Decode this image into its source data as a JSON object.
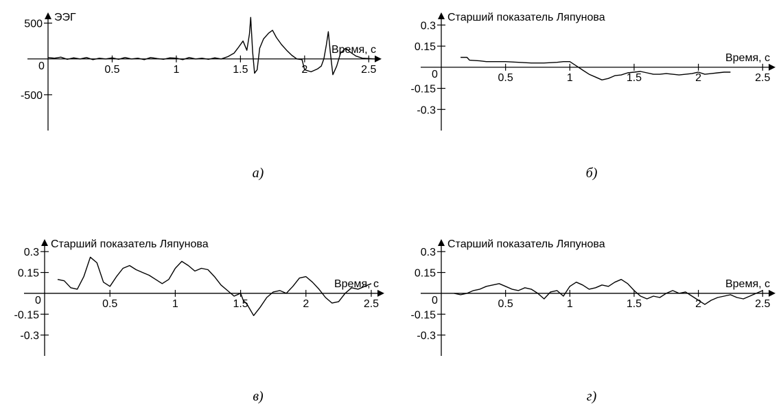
{
  "chart_data": [
    {
      "type": "line",
      "panel": "a",
      "caption": "а)",
      "ylabel": "ЭЭГ",
      "xlabel": "Время, с",
      "origin_label": "0",
      "xlim": [
        0,
        2.6
      ],
      "ylim": [
        -1000,
        650
      ],
      "xticks": [
        0.5,
        1,
        1.5,
        2,
        2.5
      ],
      "xtick_labels": [
        "0.5",
        "1",
        "1.5",
        "2",
        "2.5"
      ],
      "yticks": [
        500,
        -500
      ],
      "ytick_labels": [
        "500",
        "-500"
      ],
      "series": [
        {
          "x": [
            0.0,
            0.05,
            0.1,
            0.15,
            0.2,
            0.25,
            0.3,
            0.35,
            0.4,
            0.45,
            0.5,
            0.55,
            0.6,
            0.65,
            0.7,
            0.75,
            0.8,
            0.85,
            0.9,
            0.95,
            1.0,
            1.05,
            1.1,
            1.15,
            1.2,
            1.25,
            1.3,
            1.35,
            1.4,
            1.45,
            1.48,
            1.52,
            1.55,
            1.57,
            1.58,
            1.595,
            1.61,
            1.63,
            1.65,
            1.68,
            1.72,
            1.75,
            1.78,
            1.82,
            1.86,
            1.9,
            1.94,
            1.98,
            2.0,
            2.05,
            2.1,
            2.13,
            2.15,
            2.17,
            2.185,
            2.2,
            2.22,
            2.25,
            2.28,
            2.32,
            2.36,
            2.4,
            2.45,
            2.5,
            2.55
          ],
          "y": [
            20,
            10,
            25,
            -5,
            15,
            0,
            20,
            -10,
            10,
            0,
            15,
            -5,
            20,
            0,
            10,
            -10,
            20,
            5,
            -5,
            15,
            10,
            -10,
            20,
            0,
            10,
            -5,
            15,
            0,
            30,
            80,
            150,
            250,
            120,
            350,
            580,
            100,
            -200,
            -150,
            150,
            280,
            360,
            400,
            300,
            200,
            120,
            50,
            0,
            -10,
            -150,
            -180,
            -140,
            -100,
            0,
            200,
            380,
            100,
            -220,
            -100,
            80,
            150,
            90,
            40,
            10,
            5,
            0
          ]
        }
      ]
    },
    {
      "type": "line",
      "panel": "b",
      "caption": "б)",
      "ylabel": "Старший показатель Ляпунова",
      "xlabel": "Время, с",
      "origin_label": "0",
      "xlim": [
        0,
        2.6
      ],
      "ylim": [
        -0.45,
        0.39
      ],
      "xticks": [
        0.5,
        1,
        1.5,
        2,
        2.5
      ],
      "xtick_labels": [
        "0.5",
        "1",
        "1.5",
        "2",
        "2.5"
      ],
      "yticks": [
        0.3,
        0.15,
        -0.15,
        -0.3
      ],
      "ytick_labels": [
        "0.3",
        "0.15",
        "-0.15",
        "-0.3"
      ],
      "series": [
        {
          "x": [
            0.15,
            0.2,
            0.22,
            0.3,
            0.35,
            0.45,
            0.5,
            0.6,
            0.7,
            0.8,
            0.9,
            0.95,
            1.0,
            1.05,
            1.1,
            1.15,
            1.2,
            1.25,
            1.3,
            1.35,
            1.4,
            1.45,
            1.5,
            1.55,
            1.6,
            1.65,
            1.7,
            1.75,
            1.8,
            1.85,
            1.9,
            1.95,
            2.0,
            2.05,
            2.1,
            2.15,
            2.2,
            2.25
          ],
          "y": [
            0.07,
            0.07,
            0.05,
            0.045,
            0.04,
            0.04,
            0.04,
            0.035,
            0.03,
            0.03,
            0.035,
            0.04,
            0.04,
            0.01,
            -0.02,
            -0.05,
            -0.07,
            -0.09,
            -0.08,
            -0.06,
            -0.055,
            -0.04,
            -0.035,
            -0.03,
            -0.04,
            -0.05,
            -0.05,
            -0.045,
            -0.05,
            -0.055,
            -0.05,
            -0.045,
            -0.035,
            -0.05,
            -0.045,
            -0.04,
            -0.035,
            -0.035
          ]
        }
      ]
    },
    {
      "type": "line",
      "panel": "c",
      "caption": "в)",
      "ylabel": "Старший показатель Ляпунова",
      "xlabel": "Время, с",
      "origin_label": "0",
      "xlim": [
        0,
        2.6
      ],
      "ylim": [
        -0.45,
        0.39
      ],
      "xticks": [
        0.5,
        1,
        1.5,
        2,
        2.5
      ],
      "xtick_labels": [
        "0.5",
        "1",
        "1.5",
        "2",
        "2.5"
      ],
      "yticks": [
        0.3,
        0.15,
        -0.15,
        -0.3
      ],
      "ytick_labels": [
        "0.3",
        "0.15",
        "-0.15",
        "-0.3"
      ],
      "series": [
        {
          "x": [
            0.1,
            0.15,
            0.2,
            0.25,
            0.3,
            0.35,
            0.4,
            0.45,
            0.5,
            0.55,
            0.6,
            0.65,
            0.7,
            0.75,
            0.8,
            0.85,
            0.9,
            0.95,
            1.0,
            1.05,
            1.1,
            1.15,
            1.2,
            1.25,
            1.3,
            1.35,
            1.4,
            1.45,
            1.5,
            1.52,
            1.55,
            1.6,
            1.65,
            1.7,
            1.75,
            1.8,
            1.85,
            1.9,
            1.95,
            2.0,
            2.05,
            2.1,
            2.15,
            2.2,
            2.25,
            2.3,
            2.35,
            2.4,
            2.45,
            2.5
          ],
          "y": [
            0.1,
            0.09,
            0.04,
            0.03,
            0.12,
            0.26,
            0.22,
            0.08,
            0.05,
            0.12,
            0.18,
            0.2,
            0.17,
            0.15,
            0.13,
            0.1,
            0.07,
            0.1,
            0.18,
            0.23,
            0.2,
            0.16,
            0.18,
            0.17,
            0.12,
            0.06,
            0.02,
            -0.02,
            0.0,
            -0.05,
            -0.08,
            -0.16,
            -0.1,
            -0.03,
            0.01,
            0.02,
            0.0,
            0.05,
            0.11,
            0.12,
            0.08,
            0.03,
            -0.03,
            -0.07,
            -0.06,
            0.0,
            0.04,
            0.03,
            0.05,
            0.07
          ]
        }
      ]
    },
    {
      "type": "line",
      "panel": "d",
      "caption": "г)",
      "ylabel": "Старший показатель Ляпунова",
      "xlabel": "Время, с",
      "origin_label": "0",
      "xlim": [
        0,
        2.6
      ],
      "ylim": [
        -0.45,
        0.39
      ],
      "xticks": [
        0.5,
        1,
        1.5,
        2,
        2.5
      ],
      "xtick_labels": [
        "0.5",
        "1",
        "1.5",
        "2",
        "2.5"
      ],
      "yticks": [
        0.3,
        0.15,
        -0.15,
        -0.3
      ],
      "ytick_labels": [
        "0.3",
        "0.15",
        "-0.15",
        "-0.3"
      ],
      "series": [
        {
          "x": [
            0.1,
            0.15,
            0.2,
            0.25,
            0.3,
            0.35,
            0.4,
            0.45,
            0.5,
            0.55,
            0.6,
            0.65,
            0.7,
            0.75,
            0.8,
            0.85,
            0.9,
            0.95,
            1.0,
            1.05,
            1.1,
            1.15,
            1.2,
            1.25,
            1.3,
            1.35,
            1.4,
            1.45,
            1.5,
            1.55,
            1.6,
            1.65,
            1.7,
            1.75,
            1.8,
            1.85,
            1.9,
            1.95,
            2.0,
            2.05,
            2.1,
            2.15,
            2.2,
            2.25,
            2.3,
            2.35,
            2.4,
            2.45,
            2.5
          ],
          "y": [
            0.0,
            -0.01,
            0.0,
            0.02,
            0.03,
            0.05,
            0.06,
            0.07,
            0.05,
            0.03,
            0.02,
            0.04,
            0.03,
            0.0,
            -0.04,
            0.01,
            0.02,
            -0.02,
            0.05,
            0.08,
            0.06,
            0.03,
            0.04,
            0.06,
            0.05,
            0.08,
            0.1,
            0.07,
            0.02,
            -0.02,
            -0.04,
            -0.02,
            -0.03,
            0.0,
            0.02,
            0.0,
            0.01,
            -0.02,
            -0.05,
            -0.08,
            -0.05,
            -0.03,
            -0.02,
            -0.01,
            -0.03,
            -0.04,
            -0.02,
            0.0,
            0.02
          ]
        }
      ]
    }
  ]
}
